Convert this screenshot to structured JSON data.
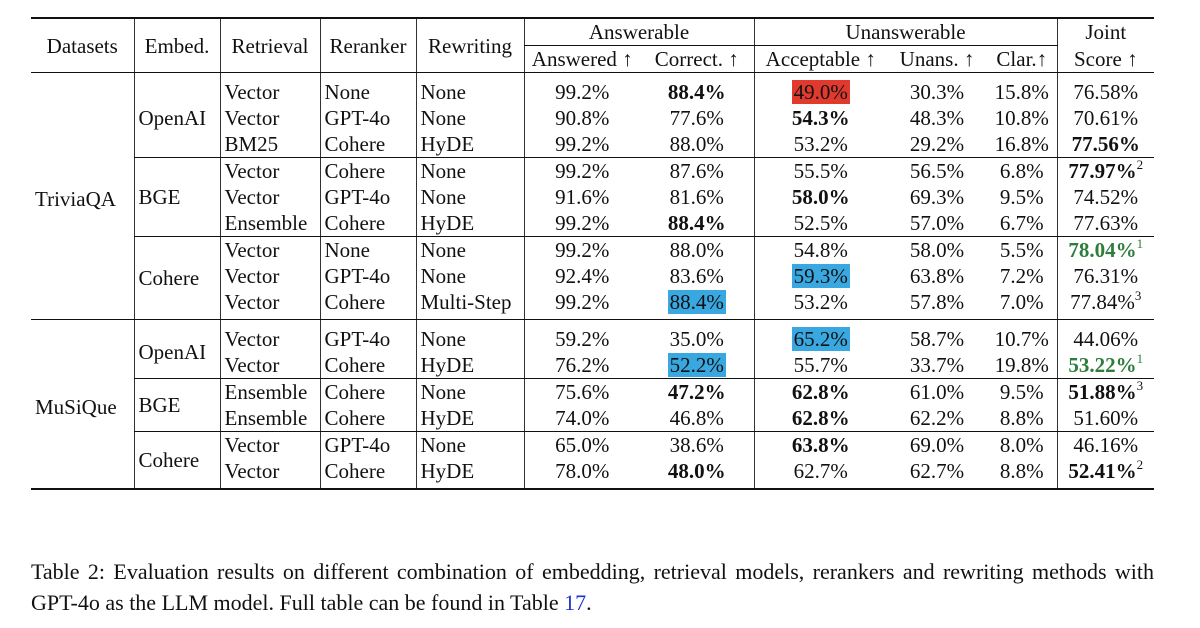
{
  "header": {
    "datasets": "Datasets",
    "embed": "Embed.",
    "retrieval": "Retrieval",
    "reranker": "Reranker",
    "rewriting": "Rewriting",
    "answerable": "Answerable",
    "unanswerable": "Unanswerable",
    "joint_l1": "Joint",
    "joint_l2": "Score ↑",
    "answered": "Answered ↑",
    "correct": "Correct. ↑",
    "acceptable": "Acceptable ↑",
    "unans": "Unans. ↑",
    "clar": "Clar.↑"
  },
  "rows": [
    {
      "dataset": "TriviaQA",
      "embed": "OpenAI",
      "retrieval": "Vector",
      "reranker": "None",
      "rewriting": "None",
      "answered": "99.2%",
      "correct": "88.4%",
      "acceptable": "49.0%",
      "unans": "30.3%",
      "clar": "15.8%",
      "joint": "76.58%",
      "joint_sup": ""
    },
    {
      "dataset": "TriviaQA",
      "embed": "OpenAI",
      "retrieval": "Vector",
      "reranker": "GPT-4o",
      "rewriting": "None",
      "answered": "90.8%",
      "correct": "77.6%",
      "acceptable": "54.3%",
      "unans": "48.3%",
      "clar": "10.8%",
      "joint": "70.61%",
      "joint_sup": ""
    },
    {
      "dataset": "TriviaQA",
      "embed": "OpenAI",
      "retrieval": "BM25",
      "reranker": "Cohere",
      "rewriting": "HyDE",
      "answered": "99.2%",
      "correct": "88.0%",
      "acceptable": "53.2%",
      "unans": "29.2%",
      "clar": "16.8%",
      "joint": "77.56%",
      "joint_sup": ""
    },
    {
      "dataset": "TriviaQA",
      "embed": "BGE",
      "retrieval": "Vector",
      "reranker": "Cohere",
      "rewriting": "None",
      "answered": "99.2%",
      "correct": "87.6%",
      "acceptable": "55.5%",
      "unans": "56.5%",
      "clar": "6.8%",
      "joint": "77.97%",
      "joint_sup": "2"
    },
    {
      "dataset": "TriviaQA",
      "embed": "BGE",
      "retrieval": "Vector",
      "reranker": "GPT-4o",
      "rewriting": "None",
      "answered": "91.6%",
      "correct": "81.6%",
      "acceptable": "58.0%",
      "unans": "69.3%",
      "clar": "9.5%",
      "joint": "74.52%",
      "joint_sup": ""
    },
    {
      "dataset": "TriviaQA",
      "embed": "BGE",
      "retrieval": "Ensemble",
      "reranker": "Cohere",
      "rewriting": "HyDE",
      "answered": "99.2%",
      "correct": "88.4%",
      "acceptable": "52.5%",
      "unans": "57.0%",
      "clar": "6.7%",
      "joint": "77.63%",
      "joint_sup": ""
    },
    {
      "dataset": "TriviaQA",
      "embed": "Cohere",
      "retrieval": "Vector",
      "reranker": "None",
      "rewriting": "None",
      "answered": "99.2%",
      "correct": "88.0%",
      "acceptable": "54.8%",
      "unans": "58.0%",
      "clar": "5.5%",
      "joint": "78.04%",
      "joint_sup": "1"
    },
    {
      "dataset": "TriviaQA",
      "embed": "Cohere",
      "retrieval": "Vector",
      "reranker": "GPT-4o",
      "rewriting": "None",
      "answered": "92.4%",
      "correct": "83.6%",
      "acceptable": "59.3%",
      "unans": "63.8%",
      "clar": "7.2%",
      "joint": "76.31%",
      "joint_sup": ""
    },
    {
      "dataset": "TriviaQA",
      "embed": "Cohere",
      "retrieval": "Vector",
      "reranker": "Cohere",
      "rewriting": "Multi-Step",
      "answered": "99.2%",
      "correct": "88.4%",
      "acceptable": "53.2%",
      "unans": "57.8%",
      "clar": "7.0%",
      "joint": "77.84%",
      "joint_sup": "3"
    },
    {
      "dataset": "MuSiQue",
      "embed": "OpenAI",
      "retrieval": "Vector",
      "reranker": "GPT-4o",
      "rewriting": "None",
      "answered": "59.2%",
      "correct": "35.0%",
      "acceptable": "65.2%",
      "unans": "58.7%",
      "clar": "10.7%",
      "joint": "44.06%",
      "joint_sup": ""
    },
    {
      "dataset": "MuSiQue",
      "embed": "OpenAI",
      "retrieval": "Vector",
      "reranker": "Cohere",
      "rewriting": "HyDE",
      "answered": "76.2%",
      "correct": "52.2%",
      "acceptable": "55.7%",
      "unans": "33.7%",
      "clar": "19.8%",
      "joint": "53.22%",
      "joint_sup": "1"
    },
    {
      "dataset": "MuSiQue",
      "embed": "BGE",
      "retrieval": "Ensemble",
      "reranker": "Cohere",
      "rewriting": "None",
      "answered": "75.6%",
      "correct": "47.2%",
      "acceptable": "62.8%",
      "unans": "61.0%",
      "clar": "9.5%",
      "joint": "51.88%",
      "joint_sup": "3"
    },
    {
      "dataset": "MuSiQue",
      "embed": "BGE",
      "retrieval": "Ensemble",
      "reranker": "Cohere",
      "rewriting": "HyDE",
      "answered": "74.0%",
      "correct": "46.8%",
      "acceptable": "62.8%",
      "unans": "62.2%",
      "clar": "8.8%",
      "joint": "51.60%",
      "joint_sup": ""
    },
    {
      "dataset": "MuSiQue",
      "embed": "Cohere",
      "retrieval": "Vector",
      "reranker": "GPT-4o",
      "rewriting": "None",
      "answered": "65.0%",
      "correct": "38.6%",
      "acceptable": "63.8%",
      "unans": "69.0%",
      "clar": "8.0%",
      "joint": "46.16%",
      "joint_sup": ""
    },
    {
      "dataset": "MuSiQue",
      "embed": "Cohere",
      "retrieval": "Vector",
      "reranker": "Cohere",
      "rewriting": "HyDE",
      "answered": "78.0%",
      "correct": "48.0%",
      "acceptable": "62.7%",
      "unans": "62.7%",
      "clar": "8.8%",
      "joint": "52.41%",
      "joint_sup": "2"
    }
  ],
  "caption": {
    "text": "Table 2: Evaluation results on different combination of embedding, retrieval models, rerankers and rewriting methods with GPT-4o as the LLM model. Full table can be found in Table ",
    "ref": "17",
    "end": "."
  },
  "colors": {
    "highlight_red": "#e03a2e",
    "highlight_blue": "#3aa8e0",
    "best_green": "#2e7d3c"
  }
}
